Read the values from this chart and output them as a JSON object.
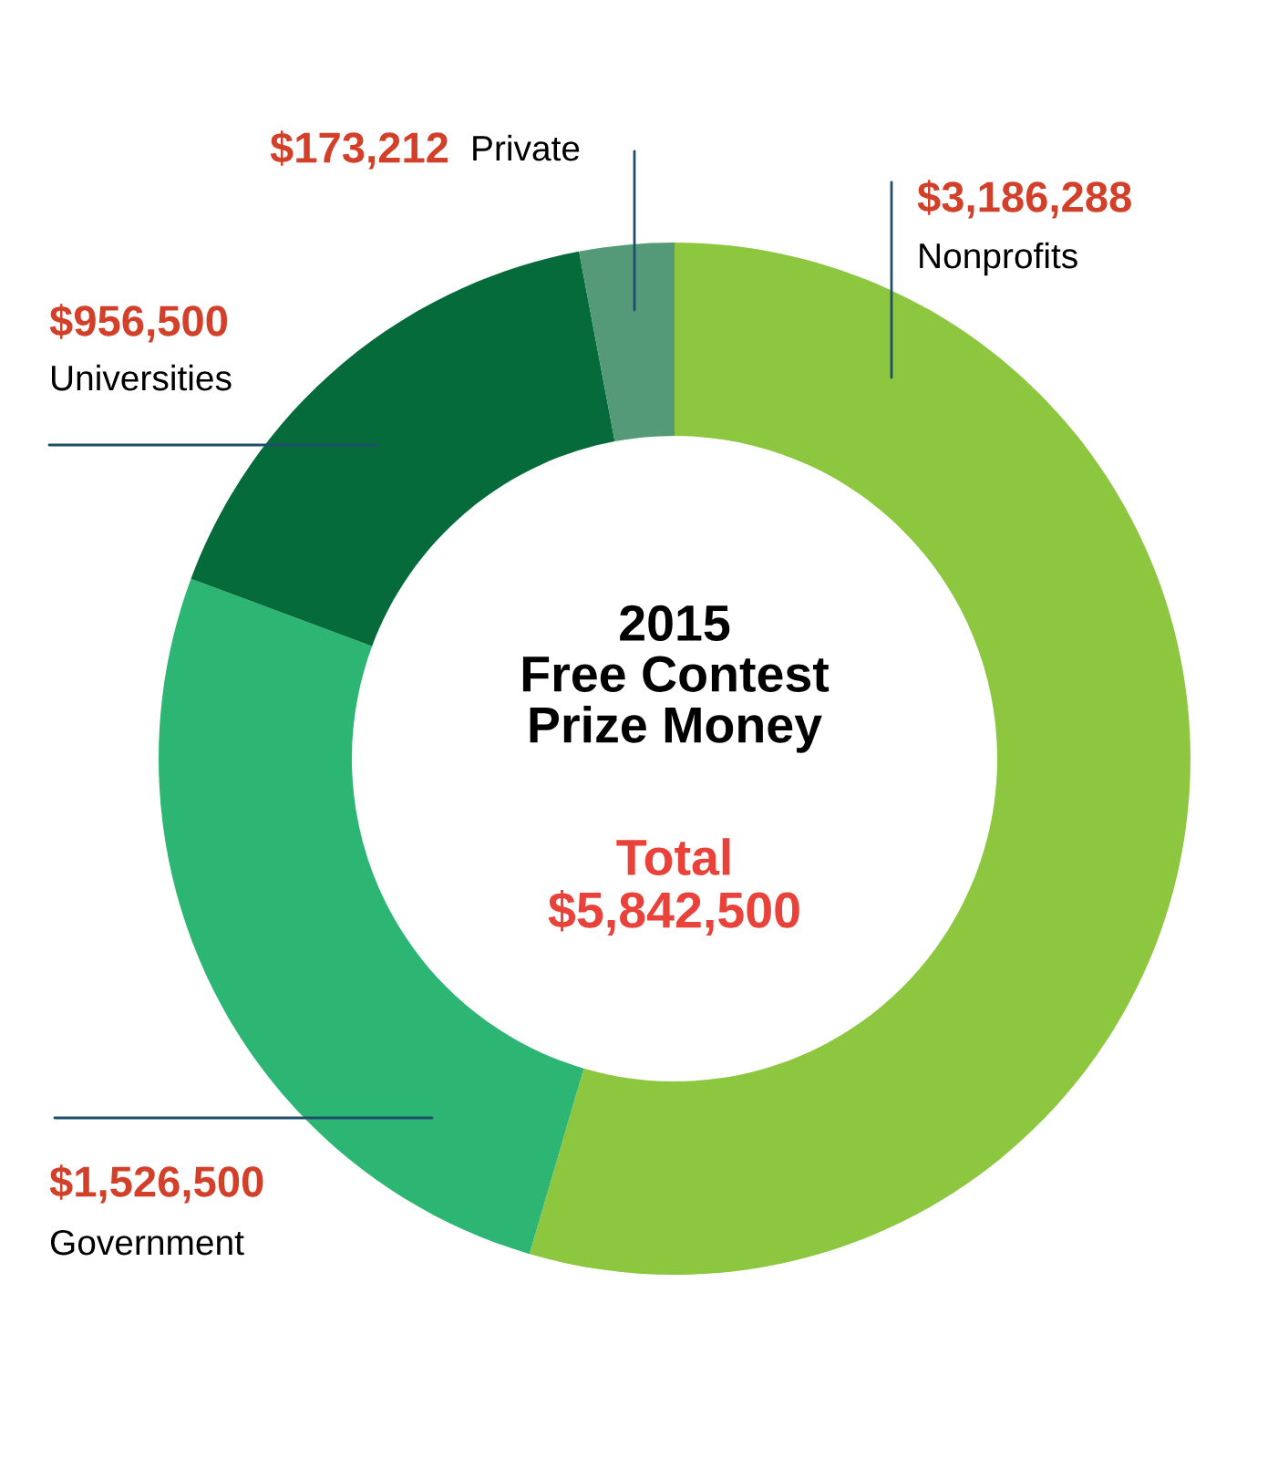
{
  "chart_data": {
    "type": "donut",
    "title": "2015\nFree Contest\nPrize Money",
    "annotations": [
      "Total\n$5,842,500"
    ],
    "categories": [
      "Nonprofits",
      "Government",
      "Universities",
      "Private"
    ],
    "values": [
      3186288,
      1526500,
      956500,
      173212
    ],
    "value_labels": [
      "$3,186,288",
      "$1,526,500",
      "$956,500",
      "$173,212"
    ],
    "colors": [
      "#8dc63f",
      "#2db673",
      "#066b3a",
      "#559a78"
    ],
    "legend": false
  }
}
